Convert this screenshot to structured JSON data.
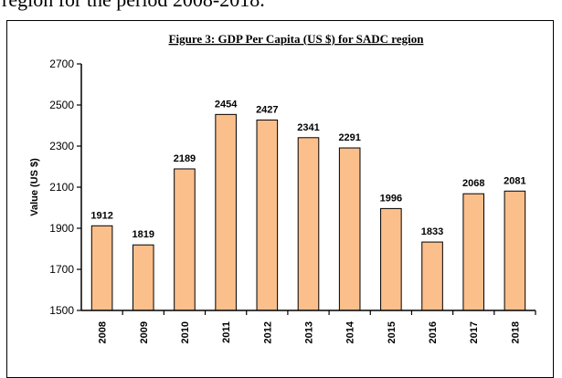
{
  "document": {
    "text_above": "region for the period 2008-2018."
  },
  "chart_data": {
    "type": "bar",
    "title": "Figure 3: GDP Per Capita (US $) for SADC region",
    "xlabel": "",
    "ylabel": "Value (US $)",
    "categories": [
      "2008",
      "2009",
      "2010",
      "2011",
      "2012",
      "2013",
      "2014",
      "2015",
      "2016",
      "2017",
      "2018"
    ],
    "values": [
      1912,
      1819,
      2189,
      2454,
      2427,
      2341,
      2291,
      1996,
      1833,
      2068,
      2081
    ],
    "ylim": [
      1500,
      2700
    ],
    "yticks": [
      1500,
      1700,
      1900,
      2100,
      2300,
      2500,
      2700
    ],
    "grid": false,
    "legend": "none",
    "bar_color": "#FBBF8C",
    "bar_edge_color": "#000000"
  }
}
